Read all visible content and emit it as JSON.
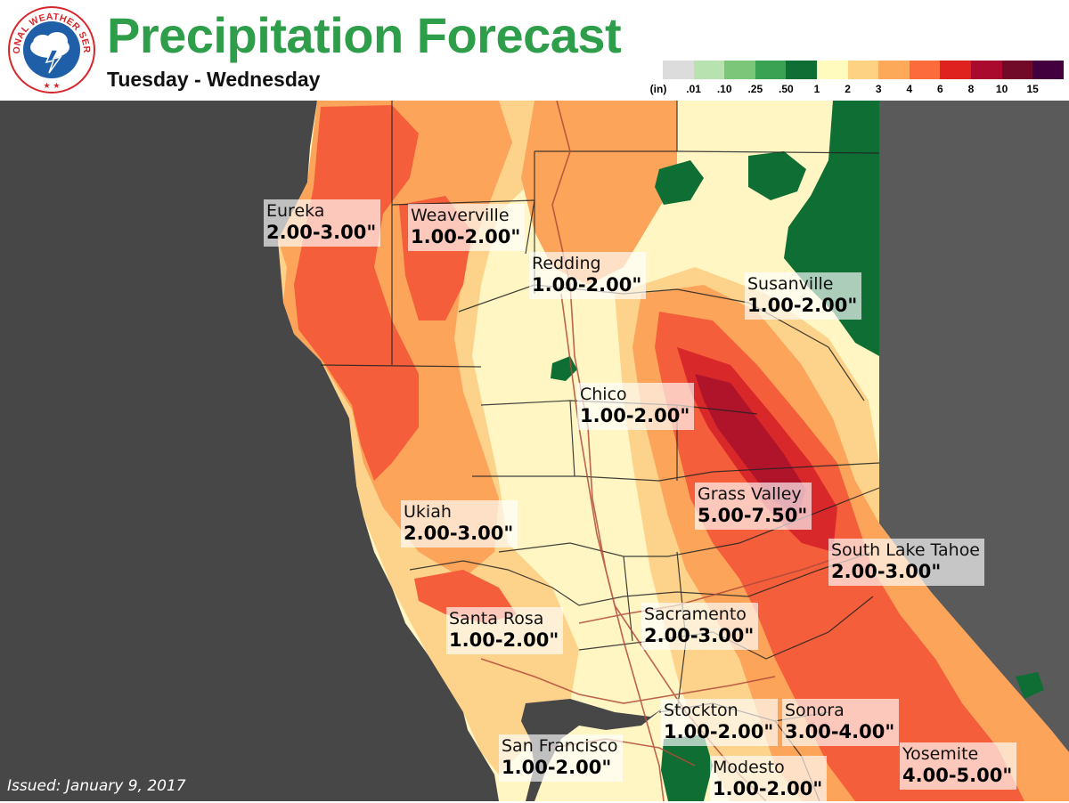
{
  "header": {
    "title": "Precipitation Forecast",
    "subtitle": "Tuesday - Wednesday",
    "logo_text": "NATIONAL WEATHER SERVICE"
  },
  "legend": {
    "unit": "(in)",
    "labels": [
      ".01",
      ".10",
      ".25",
      ".50",
      "1",
      "2",
      "3",
      "4",
      "6",
      "8",
      "10",
      "15"
    ],
    "colors": [
      "#dcdcdc",
      "#b8e2b0",
      "#7cc67a",
      "#3aa253",
      "#0e6e34",
      "#fffbbe",
      "#fdd282",
      "#fca95a",
      "#fb6b3c",
      "#e0221f",
      "#aa0a2e",
      "#700a28",
      "#42003f"
    ]
  },
  "map": {
    "colors": {
      "ocean": "#474747",
      "offstate": "#5a5a5a",
      "light_yellow": "#fff6c4",
      "tan": "#fdd28a",
      "orange": "#fca45a",
      "dark_orange": "#f7864a",
      "red_orange": "#f45e3a",
      "red": "#d9282a",
      "dark_red": "#b0142a",
      "green": "#0e6e34"
    }
  },
  "labels": [
    {
      "city": "Eureka",
      "amount": "2.00-3.00\""
    },
    {
      "city": "Weaverville",
      "amount": "1.00-2.00\""
    },
    {
      "city": "Redding",
      "amount": "1.00-2.00\""
    },
    {
      "city": "Susanville",
      "amount": "1.00-2.00\""
    },
    {
      "city": "Chico",
      "amount": "1.00-2.00\""
    },
    {
      "city": "Grass Valley",
      "amount": "5.00-7.50\""
    },
    {
      "city": "Ukiah",
      "amount": "2.00-3.00\""
    },
    {
      "city": "South Lake Tahoe",
      "amount": "2.00-3.00\""
    },
    {
      "city": "Santa Rosa",
      "amount": "1.00-2.00\""
    },
    {
      "city": "Sacramento",
      "amount": "2.00-3.00\""
    },
    {
      "city": "Stockton",
      "amount": "1.00-2.00\""
    },
    {
      "city": "Sonora",
      "amount": "3.00-4.00\""
    },
    {
      "city": "San Francisco",
      "amount": "1.00-2.00\""
    },
    {
      "city": "Modesto",
      "amount": "1.00-2.00\""
    },
    {
      "city": "Yosemite",
      "amount": "4.00-5.00\""
    }
  ],
  "footer": {
    "issued": "Issued: January 9, 2017"
  }
}
